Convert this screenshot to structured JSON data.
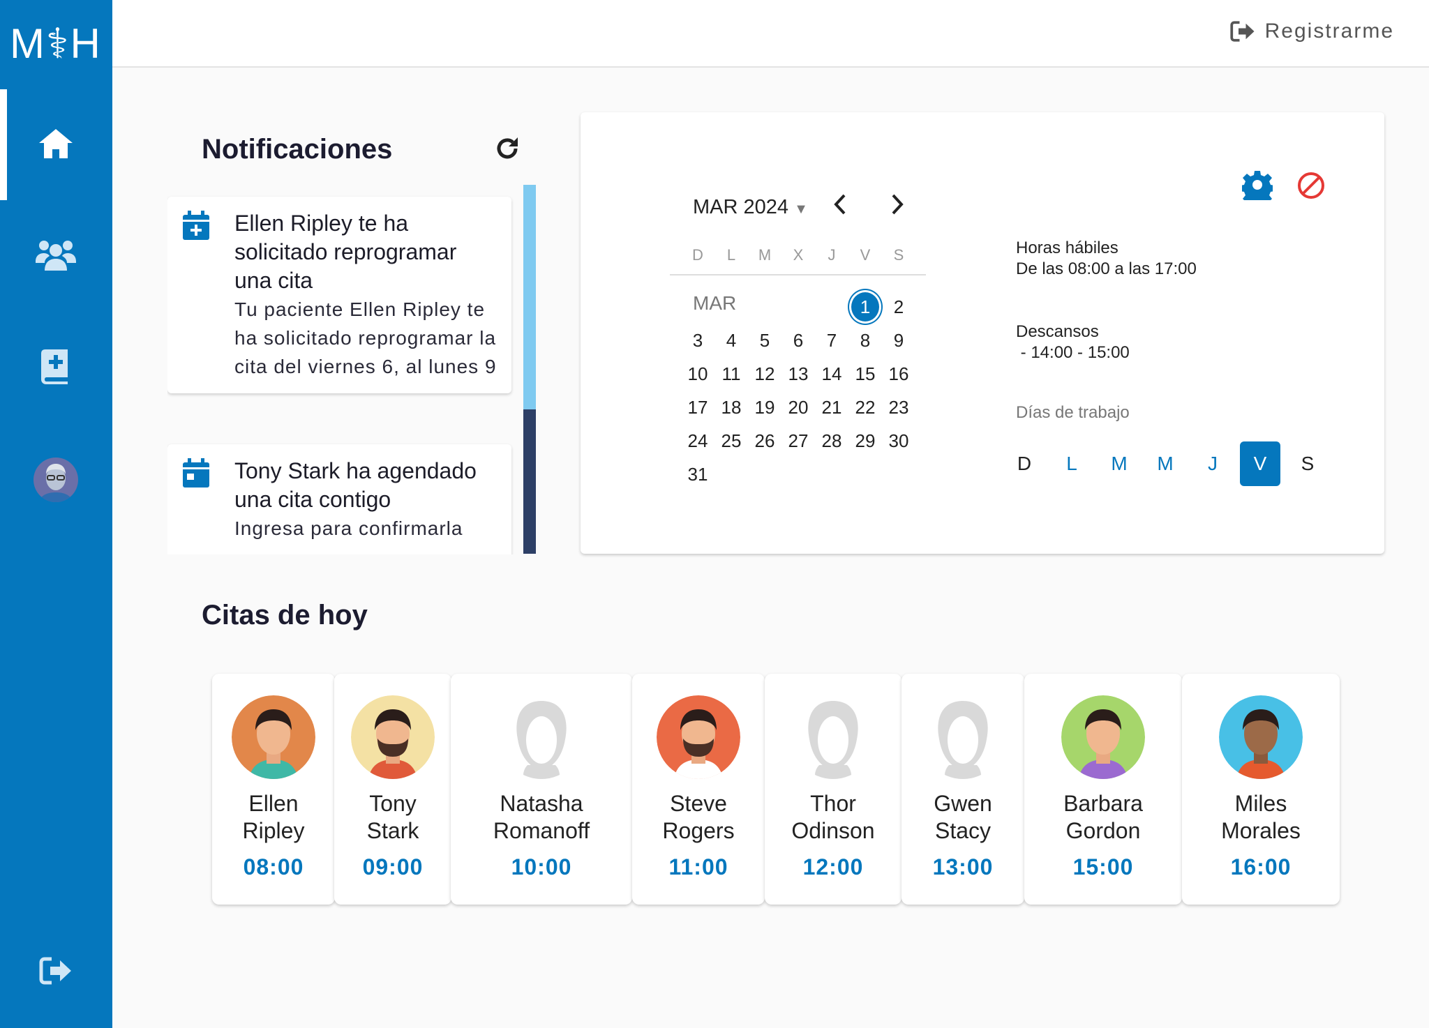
{
  "app": {
    "logo": "M⚕H"
  },
  "colors": {
    "brand": "#0577bd",
    "danger": "#e53935"
  },
  "sidebar": {
    "items": [
      {
        "name": "home-icon",
        "active": true
      },
      {
        "name": "patients-icon"
      },
      {
        "name": "medical-book-icon"
      },
      {
        "name": "profile-avatar"
      }
    ],
    "logout_icon": "sign-out-icon"
  },
  "topbar": {
    "register_label": "Registrarme",
    "register_icon": "sign-out-icon"
  },
  "notifications": {
    "title": "Notificaciones",
    "refresh_icon": "refresh-icon",
    "items": [
      {
        "icon": "calendar-plus-icon",
        "title": "Ellen Ripley te ha solicitado reprogramar una cita",
        "body": "Tu paciente Ellen Ripley te ha solicitado reprogramar la cita del viernes 6, al lunes 9"
      },
      {
        "icon": "calendar-icon",
        "title": "Tony Stark ha agendado una cita contigo",
        "body": "Ingresa para confirmarla"
      }
    ]
  },
  "calendar": {
    "month_label": "MAR 2024",
    "weekdays": [
      "D",
      "L",
      "M",
      "X",
      "J",
      "V",
      "S"
    ],
    "month_short": "MAR",
    "selected_day": "1",
    "weeks": [
      [
        "",
        "",
        "",
        "",
        "",
        "1",
        "2"
      ],
      [
        "3",
        "4",
        "5",
        "6",
        "7",
        "8",
        "9"
      ],
      [
        "10",
        "11",
        "12",
        "13",
        "14",
        "15",
        "16"
      ],
      [
        "17",
        "18",
        "19",
        "20",
        "21",
        "22",
        "23"
      ],
      [
        "24",
        "25",
        "26",
        "27",
        "28",
        "29",
        "30"
      ],
      [
        "31",
        "",
        "",
        "",
        "",
        "",
        ""
      ]
    ]
  },
  "schedule": {
    "hours_label": "Horas hábiles",
    "hours_value": "De las 08:00 a las 17:00",
    "breaks_label": "Descansos",
    "breaks_value": " - 14:00 - 15:00",
    "workdays_label": "Días de trabajo",
    "workdays": [
      {
        "label": "D",
        "enabled": false
      },
      {
        "label": "L",
        "enabled": true
      },
      {
        "label": "M",
        "enabled": true
      },
      {
        "label": "M",
        "enabled": true
      },
      {
        "label": "J",
        "enabled": true
      },
      {
        "label": "V",
        "enabled": true,
        "selected": true
      },
      {
        "label": "S",
        "enabled": false
      }
    ]
  },
  "today": {
    "title": "Citas de hoy",
    "appointments": [
      {
        "first": "Ellen",
        "last": "Ripley",
        "time": "08:00",
        "avatar_bg": "#e2874a"
      },
      {
        "first": "Tony",
        "last": "Stark",
        "time": "09:00",
        "avatar_bg": "#f4e1a4"
      },
      {
        "first": "Natasha",
        "last": "Romanoff",
        "time": "10:00",
        "avatar_bg": "#e0e0e0"
      },
      {
        "first": "Steve",
        "last": "Rogers",
        "time": "11:00",
        "avatar_bg": "#ea6a45"
      },
      {
        "first": "Thor",
        "last": "Odinson",
        "time": "12:00",
        "avatar_bg": "#e0e0e0"
      },
      {
        "first": "Gwen",
        "last": "Stacy",
        "time": "13:00",
        "avatar_bg": "#e0e0e0"
      },
      {
        "first": "Barbara",
        "last": "Gordon",
        "time": "15:00",
        "avatar_bg": "#a6d66b"
      },
      {
        "first": "Miles",
        "last": "Morales",
        "time": "16:00",
        "avatar_bg": "#48c0e6"
      }
    ]
  }
}
